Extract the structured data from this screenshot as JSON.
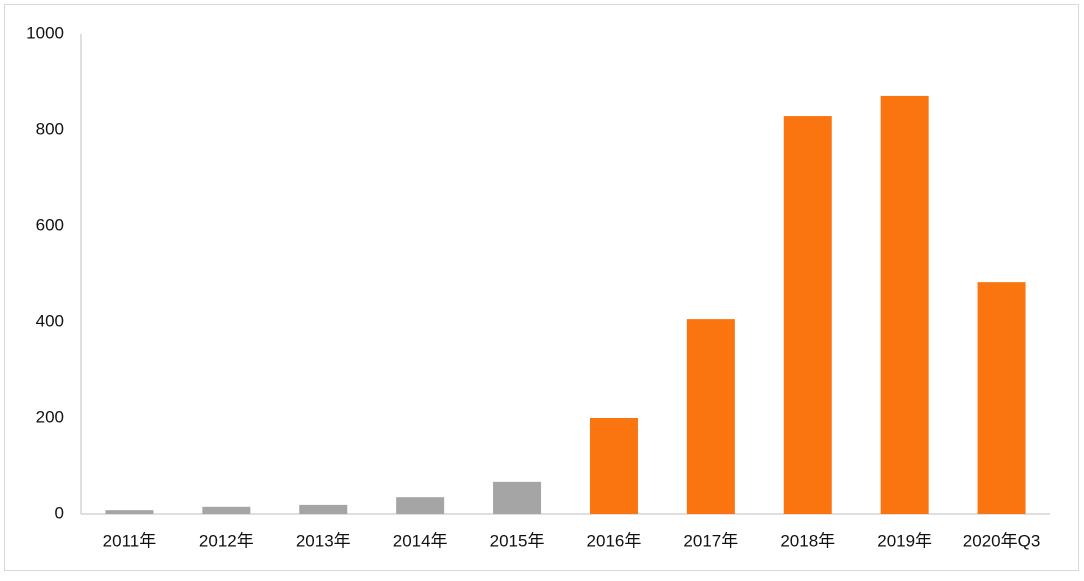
{
  "chart_data": {
    "type": "bar",
    "categories": [
      "2011年",
      "2012年",
      "2013年",
      "2014年",
      "2015年",
      "2016年",
      "2017年",
      "2018年",
      "2019年",
      "2020年Q3"
    ],
    "values": [
      8,
      15,
      19,
      35,
      67,
      200,
      406,
      829,
      871,
      483
    ],
    "colors": [
      "#a5a5a5",
      "#a5a5a5",
      "#a5a5a5",
      "#a5a5a5",
      "#a5a5a5",
      "#fa7410",
      "#fa7410",
      "#fa7410",
      "#fa7410",
      "#fa7410"
    ],
    "ylim": [
      0,
      1000
    ],
    "yticks": [
      0,
      200,
      400,
      600,
      800,
      1000
    ],
    "grid": false
  }
}
